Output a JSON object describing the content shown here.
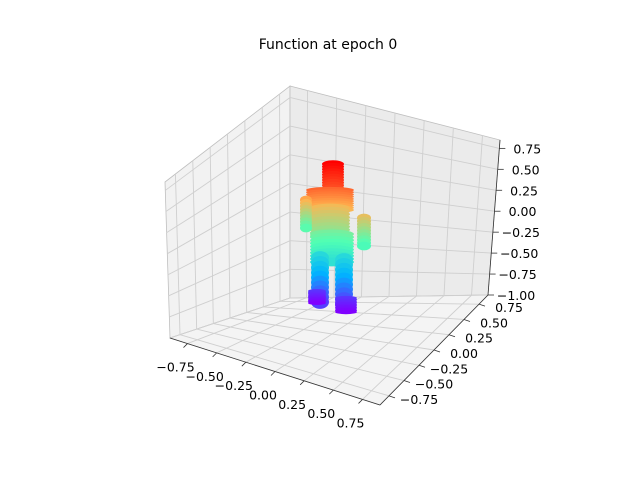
{
  "chart_data": {
    "type": "scatter",
    "projection": "3d",
    "title": "Function at epoch 0",
    "xlabel": "",
    "ylabel": "",
    "zlabel": "",
    "grid": true,
    "colormap": "rainbow",
    "color_encodes": "z (height)",
    "xlim": [
      -0.9,
      0.9
    ],
    "ylim": [
      -0.9,
      0.9
    ],
    "zlim": [
      -1.0,
      0.85
    ],
    "x_ticks": [
      "−0.75",
      "−0.50",
      "−0.25",
      "0.00",
      "0.25",
      "0.50",
      "0.75"
    ],
    "y_ticks": [
      "−0.75",
      "−0.50",
      "−0.25",
      "0.00",
      "0.25",
      "0.50",
      "0.75"
    ],
    "z_ticks": [
      "−1.00",
      "−0.75",
      "−0.50",
      "−0.25",
      "0.00",
      "0.25",
      "0.50",
      "0.75"
    ],
    "x_tick_values": [
      -0.75,
      -0.5,
      -0.25,
      0.0,
      0.25,
      0.5,
      0.75
    ],
    "y_tick_values": [
      -0.75,
      -0.5,
      -0.25,
      0.0,
      0.25,
      0.5,
      0.75
    ],
    "z_tick_values": [
      -1.0,
      -0.75,
      -0.5,
      -0.25,
      0.0,
      0.25,
      0.5,
      0.75
    ],
    "subject": "human body point cloud (standing figure)",
    "z_range_of_points": [
      -0.95,
      0.8
    ]
  }
}
